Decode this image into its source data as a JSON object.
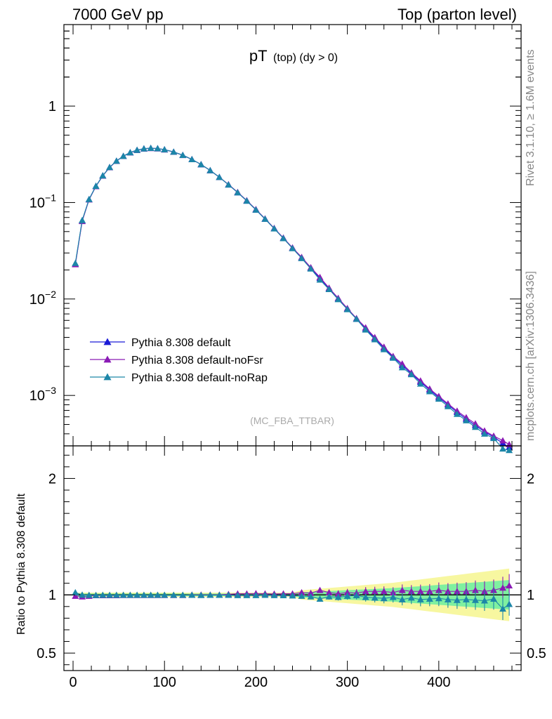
{
  "header": {
    "left": "7000 GeV pp",
    "right": "Top (parton level)"
  },
  "side_labels": {
    "rivet": "Rivet 3.1.10, ≥ 1.6M events",
    "mcplots": "mcplots.cern.ch [arXiv:1306.3436]"
  },
  "colors": {
    "default": "#1a1ad6",
    "noFsr": "#8a1ab5",
    "noRap": "#1c86a8",
    "band_yellow": "#f7f7a0",
    "band_green": "#7ff0a0"
  },
  "chart_data": [
    {
      "type": "line",
      "title_main": "pT",
      "title_sub": "(top) (dy > 0)",
      "watermark": "(MC_FBA_TTBAR)",
      "log_y": true,
      "xlim": [
        -10,
        490
      ],
      "ylim": [
        0.0003,
        7
      ],
      "yticks": [
        0.001,
        0.01,
        0.1,
        1
      ],
      "ytick_labels": [
        {
          "base": "10",
          "exp": "−3"
        },
        {
          "base": "10",
          "exp": "−2"
        },
        {
          "base": "10",
          "exp": "−1"
        },
        {
          "base": "1",
          "exp": ""
        }
      ],
      "legend_position": "bottom-left",
      "series": [
        {
          "name": "Pythia 8.308 default",
          "color_key": "default",
          "x": [
            2.5,
            10,
            17.5,
            25,
            32.5,
            40,
            47.5,
            55,
            62.5,
            70,
            77.5,
            85,
            92.5,
            100,
            110,
            120,
            130,
            140,
            150,
            160,
            170,
            180,
            190,
            200,
            210,
            220,
            230,
            240,
            250,
            260,
            270,
            280,
            290,
            300,
            310,
            320,
            330,
            340,
            350,
            360,
            370,
            380,
            390,
            400,
            410,
            420,
            430,
            440,
            450,
            460,
            470,
            477
          ],
          "y": [
            0.023,
            0.065,
            0.108,
            0.148,
            0.19,
            0.232,
            0.27,
            0.303,
            0.33,
            0.35,
            0.362,
            0.366,
            0.363,
            0.354,
            0.335,
            0.31,
            0.28,
            0.248,
            0.215,
            0.183,
            0.153,
            0.127,
            0.104,
            0.084,
            0.0675,
            0.0538,
            0.0427,
            0.0337,
            0.0266,
            0.0209,
            0.0164,
            0.0128,
            0.0101,
            0.0079,
            0.0062,
            0.0049,
            0.0039,
            0.0031,
            0.0025,
            0.00205,
            0.00168,
            0.00138,
            0.00114,
            0.00095,
            0.0008,
            0.00067,
            0.00057,
            0.00049,
            0.00042,
            0.00037,
            0.00032,
            0.00029
          ]
        },
        {
          "name": "Pythia 8.308 default-noFsr",
          "color_key": "noFsr",
          "x": [
            2.5,
            10,
            17.5,
            25,
            32.5,
            40,
            47.5,
            55,
            62.5,
            70,
            77.5,
            85,
            92.5,
            100,
            110,
            120,
            130,
            140,
            150,
            160,
            170,
            180,
            190,
            200,
            210,
            220,
            230,
            240,
            250,
            260,
            270,
            280,
            290,
            300,
            310,
            320,
            330,
            340,
            350,
            360,
            370,
            380,
            390,
            400,
            410,
            420,
            430,
            440,
            450,
            460,
            470,
            477
          ],
          "y": [
            0.0228,
            0.064,
            0.107,
            0.147,
            0.189,
            0.231,
            0.269,
            0.302,
            0.329,
            0.349,
            0.361,
            0.365,
            0.362,
            0.353,
            0.334,
            0.309,
            0.28,
            0.248,
            0.215,
            0.183,
            0.154,
            0.128,
            0.105,
            0.085,
            0.068,
            0.0542,
            0.043,
            0.034,
            0.0271,
            0.0212,
            0.0168,
            0.013,
            0.0102,
            0.008,
            0.0063,
            0.00505,
            0.004,
            0.00318,
            0.00255,
            0.00213,
            0.00172,
            0.00142,
            0.00117,
            0.00098,
            0.00082,
            0.00069,
            0.00059,
            0.00051,
            0.00043,
            0.00038,
            0.00034,
            0.00031
          ]
        },
        {
          "name": "Pythia 8.308 default-noRap",
          "color_key": "noRap",
          "x": [
            2.5,
            10,
            17.5,
            25,
            32.5,
            40,
            47.5,
            55,
            62.5,
            70,
            77.5,
            85,
            92.5,
            100,
            110,
            120,
            130,
            140,
            150,
            160,
            170,
            180,
            190,
            200,
            210,
            220,
            230,
            240,
            250,
            260,
            270,
            280,
            290,
            300,
            310,
            320,
            330,
            340,
            350,
            360,
            370,
            380,
            390,
            400,
            410,
            420,
            430,
            440,
            450,
            460,
            470,
            477
          ],
          "y": [
            0.0235,
            0.0655,
            0.108,
            0.148,
            0.19,
            0.232,
            0.27,
            0.303,
            0.33,
            0.35,
            0.362,
            0.366,
            0.363,
            0.354,
            0.335,
            0.31,
            0.28,
            0.248,
            0.215,
            0.183,
            0.153,
            0.127,
            0.104,
            0.084,
            0.0675,
            0.0536,
            0.0425,
            0.0335,
            0.0264,
            0.0206,
            0.0158,
            0.0126,
            0.0099,
            0.0078,
            0.0062,
            0.0048,
            0.0038,
            0.003,
            0.00245,
            0.00195,
            0.00165,
            0.00132,
            0.0011,
            0.00092,
            0.00077,
            0.00064,
            0.00055,
            0.00047,
            0.0004,
            0.00036,
            0.00028,
            0.00027
          ]
        }
      ]
    },
    {
      "type": "line",
      "ylabel": "Ratio to Pythia 8.308 default",
      "xlim": [
        -10,
        490
      ],
      "ylim": [
        0.35,
        2.28
      ],
      "yticks": [
        0.5,
        1,
        2
      ],
      "ytick_labels": [
        "0.5",
        "1",
        "2"
      ],
      "xticks": [
        0,
        100,
        200,
        300,
        400
      ],
      "xtick_labels": [
        "0",
        "100",
        "200",
        "300",
        "400"
      ],
      "reference_line": 1,
      "series": [
        {
          "name": "Pythia 8.308 default-noFsr",
          "color_key": "noFsr",
          "x": [
            2.5,
            10,
            17.5,
            25,
            32.5,
            40,
            47.5,
            55,
            62.5,
            70,
            77.5,
            85,
            92.5,
            100,
            110,
            120,
            130,
            140,
            150,
            160,
            170,
            180,
            190,
            200,
            210,
            220,
            230,
            240,
            250,
            260,
            270,
            280,
            290,
            300,
            310,
            320,
            330,
            340,
            350,
            360,
            370,
            380,
            390,
            400,
            410,
            420,
            430,
            440,
            450,
            460,
            470,
            477
          ],
          "y": [
            0.99,
            0.985,
            0.99,
            0.995,
            0.995,
            0.995,
            0.995,
            0.997,
            0.997,
            0.997,
            0.997,
            0.997,
            0.997,
            0.997,
            0.997,
            0.997,
            1.0,
            1.0,
            1.0,
            1.0,
            1.005,
            1.01,
            1.01,
            1.012,
            1.01,
            1.008,
            1.01,
            1.01,
            1.02,
            1.015,
            1.04,
            1.02,
            1.01,
            1.02,
            1.015,
            1.03,
            1.03,
            1.03,
            1.02,
            1.04,
            1.03,
            1.03,
            1.03,
            1.04,
            1.03,
            1.03,
            1.03,
            1.04,
            1.03,
            1.04,
            1.06,
            1.08
          ]
        },
        {
          "name": "Pythia 8.308 default-noRap",
          "color_key": "noRap",
          "x": [
            2.5,
            10,
            17.5,
            25,
            32.5,
            40,
            47.5,
            55,
            62.5,
            70,
            77.5,
            85,
            92.5,
            100,
            110,
            120,
            130,
            140,
            150,
            160,
            170,
            180,
            190,
            200,
            210,
            220,
            230,
            240,
            250,
            260,
            270,
            280,
            290,
            300,
            310,
            320,
            330,
            340,
            350,
            360,
            370,
            380,
            390,
            400,
            410,
            420,
            430,
            440,
            450,
            460,
            470,
            477
          ],
          "y": [
            1.02,
            1.0,
            0.998,
            0.997,
            0.998,
            0.998,
            0.998,
            0.998,
            0.998,
            0.998,
            0.998,
            0.998,
            0.998,
            0.998,
            0.998,
            0.998,
            0.998,
            0.997,
            0.998,
            0.998,
            0.998,
            0.996,
            0.996,
            0.996,
            0.998,
            0.996,
            0.995,
            0.993,
            0.99,
            0.985,
            0.965,
            0.985,
            0.98,
            0.99,
            0.995,
            0.98,
            0.975,
            0.97,
            0.98,
            0.96,
            0.975,
            0.96,
            0.965,
            0.97,
            0.96,
            0.955,
            0.96,
            0.955,
            0.95,
            0.965,
            0.88,
            0.92
          ]
        }
      ]
    }
  ],
  "legend": [
    {
      "label": "Pythia 8.308 default",
      "color_key": "default"
    },
    {
      "label": "Pythia 8.308 default-noFsr",
      "color_key": "noFsr"
    },
    {
      "label": "Pythia 8.308 default-noRap",
      "color_key": "noRap"
    }
  ]
}
